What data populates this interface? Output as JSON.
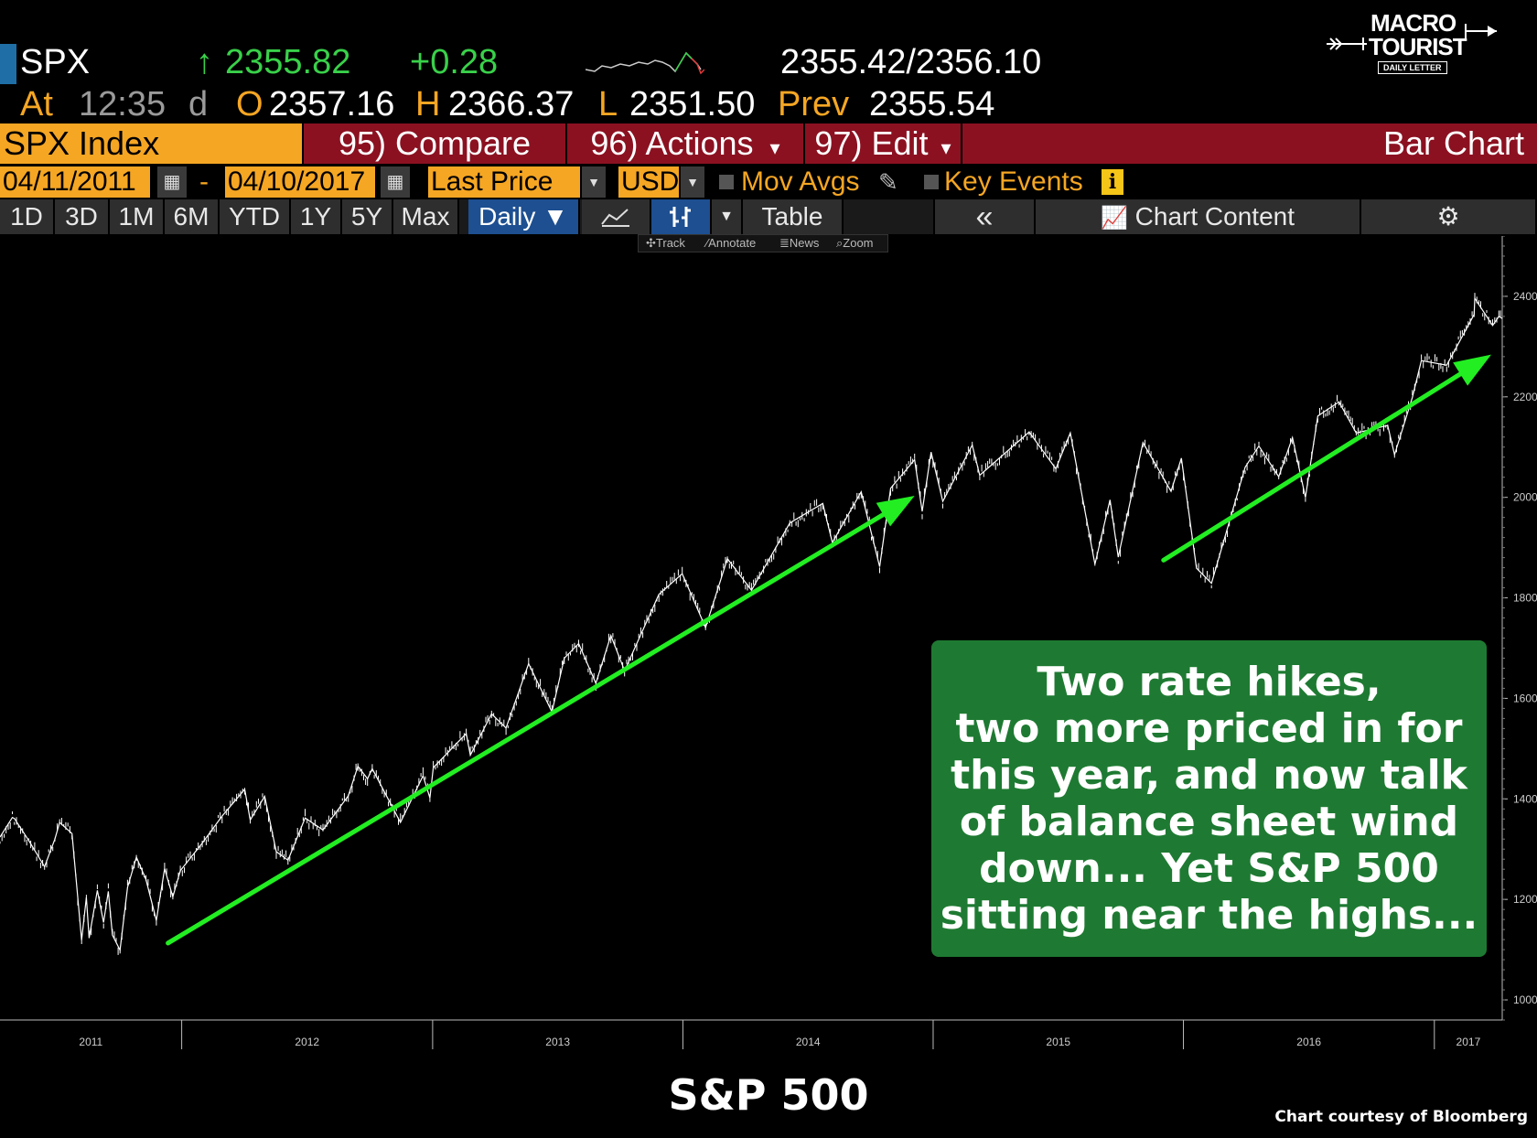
{
  "ticker": {
    "symbol": "SPX",
    "last": "2355.82",
    "up_arrow": "↑",
    "change": "+0.28",
    "bid_ask": "2355.42/2356.10",
    "at_label": "At",
    "time": "12:35",
    "time_flag": "d",
    "open_label": "O",
    "open": "2357.16",
    "high_label": "H",
    "high": "2366.37",
    "low_label": "L",
    "low": "2351.50",
    "prev_label": "Prev",
    "prev": "2355.54"
  },
  "logo": {
    "line1": "MACRO",
    "line2": "TOURIST",
    "line3": "DAILY LETTER"
  },
  "menu": {
    "index_label": "SPX Index",
    "compare": "95) Compare",
    "actions": "96) Actions",
    "actions_caret": "▾",
    "edit": "97) Edit",
    "edit_caret": "▾",
    "chart_type": "Bar Chart"
  },
  "options": {
    "start_date": "04/11/2011",
    "separator": "-",
    "end_date": "04/10/2017",
    "field": "Last Price",
    "currency": "USD",
    "mov_avgs": "Mov Avgs",
    "key_events": "Key Events",
    "info": "i"
  },
  "ranges": {
    "buttons": [
      "1D",
      "3D",
      "1M",
      "6M",
      "YTD",
      "1Y",
      "5Y",
      "Max"
    ],
    "period": "Daily ▼",
    "table": "Table",
    "collapse": "«",
    "chart_content": "Chart Content"
  },
  "tools": [
    "Track",
    "Annotate",
    "News",
    "Zoom"
  ],
  "chart_data": {
    "type": "line",
    "title": "S&P 500",
    "xlabel": "",
    "ylabel": "",
    "x_ticks": [
      "2011",
      "2012",
      "2013",
      "2014",
      "2015",
      "2016",
      "2017"
    ],
    "y_ticks": [
      "1000",
      "1200",
      "1400",
      "1600",
      "1800",
      "2000",
      "2200",
      "2400"
    ],
    "ylim": [
      960,
      2520
    ],
    "xlim": [
      "2011-04-11",
      "2017-04-10"
    ],
    "grid": false,
    "series": [
      {
        "color": "#ffffff",
        "points": [
          [
            "2011-04-11",
            1324
          ],
          [
            "2011-04-29",
            1363
          ],
          [
            "2011-05-02",
            1361
          ],
          [
            "2011-05-23",
            1317
          ],
          [
            "2011-06-15",
            1265
          ],
          [
            "2011-06-30",
            1320
          ],
          [
            "2011-07-07",
            1353
          ],
          [
            "2011-07-25",
            1331
          ],
          [
            "2011-08-08",
            1119
          ],
          [
            "2011-08-15",
            1204
          ],
          [
            "2011-08-19",
            1123
          ],
          [
            "2011-08-31",
            1218
          ],
          [
            "2011-09-09",
            1154
          ],
          [
            "2011-09-16",
            1216
          ],
          [
            "2011-09-22",
            1129
          ],
          [
            "2011-10-03",
            1099
          ],
          [
            "2011-10-14",
            1224
          ],
          [
            "2011-10-27",
            1284
          ],
          [
            "2011-11-10",
            1239
          ],
          [
            "2011-11-25",
            1158
          ],
          [
            "2011-12-07",
            1261
          ],
          [
            "2011-12-19",
            1205
          ],
          [
            "2011-12-30",
            1257
          ],
          [
            "2012-01-31",
            1312
          ],
          [
            "2012-02-29",
            1366
          ],
          [
            "2012-04-02",
            1419
          ],
          [
            "2012-04-10",
            1358
          ],
          [
            "2012-05-01",
            1405
          ],
          [
            "2012-05-18",
            1295
          ],
          [
            "2012-06-04",
            1278
          ],
          [
            "2012-06-29",
            1362
          ],
          [
            "2012-07-25",
            1338
          ],
          [
            "2012-08-31",
            1406
          ],
          [
            "2012-09-14",
            1465
          ],
          [
            "2012-09-28",
            1440
          ],
          [
            "2012-10-05",
            1460
          ],
          [
            "2012-11-15",
            1353
          ],
          [
            "2012-12-18",
            1446
          ],
          [
            "2012-12-28",
            1402
          ],
          [
            "2013-01-02",
            1462
          ],
          [
            "2013-02-19",
            1530
          ],
          [
            "2013-02-25",
            1487
          ],
          [
            "2013-03-28",
            1569
          ],
          [
            "2013-04-18",
            1541
          ],
          [
            "2013-05-21",
            1669
          ],
          [
            "2013-06-24",
            1573
          ],
          [
            "2013-07-12",
            1680
          ],
          [
            "2013-08-02",
            1709
          ],
          [
            "2013-08-27",
            1630
          ],
          [
            "2013-09-18",
            1725
          ],
          [
            "2013-10-08",
            1655
          ],
          [
            "2013-11-27",
            1807
          ],
          [
            "2013-12-31",
            1848
          ],
          [
            "2014-02-03",
            1741
          ],
          [
            "2014-03-07",
            1878
          ],
          [
            "2014-04-11",
            1815
          ],
          [
            "2014-06-06",
            1949
          ],
          [
            "2014-07-24",
            1988
          ],
          [
            "2014-08-07",
            1910
          ],
          [
            "2014-09-18",
            2011
          ],
          [
            "2014-10-15",
            1862
          ],
          [
            "2014-10-31",
            2018
          ],
          [
            "2014-12-05",
            2075
          ],
          [
            "2014-12-16",
            1972
          ],
          [
            "2014-12-29",
            2090
          ],
          [
            "2015-01-15",
            1992
          ],
          [
            "2015-02-27",
            2104
          ],
          [
            "2015-03-10",
            2044
          ],
          [
            "2015-05-21",
            2130
          ],
          [
            "2015-06-29",
            2057
          ],
          [
            "2015-07-20",
            2128
          ],
          [
            "2015-08-25",
            1867
          ],
          [
            "2015-09-16",
            1995
          ],
          [
            "2015-09-28",
            1881
          ],
          [
            "2015-11-03",
            2109
          ],
          [
            "2015-12-14",
            2012
          ],
          [
            "2015-12-29",
            2078
          ],
          [
            "2016-01-20",
            1859
          ],
          [
            "2016-02-11",
            1829
          ],
          [
            "2016-03-31",
            2060
          ],
          [
            "2016-04-20",
            2102
          ],
          [
            "2016-05-19",
            2041
          ],
          [
            "2016-06-08",
            2119
          ],
          [
            "2016-06-27",
            2000
          ],
          [
            "2016-07-15",
            2162
          ],
          [
            "2016-08-15",
            2190
          ],
          [
            "2016-09-09",
            2128
          ],
          [
            "2016-10-25",
            2143
          ],
          [
            "2016-11-04",
            2085
          ],
          [
            "2016-11-30",
            2199
          ],
          [
            "2016-12-13",
            2272
          ],
          [
            "2017-01-19",
            2263
          ],
          [
            "2017-02-28",
            2364
          ],
          [
            "2017-03-01",
            2396
          ],
          [
            "2017-03-27",
            2342
          ],
          [
            "2017-04-05",
            2360
          ],
          [
            "2017-04-10",
            2356
          ]
        ]
      }
    ],
    "annotations": [
      {
        "type": "arrow",
        "color": "#22ee22",
        "from": [
          "2011-12-12",
          1113
        ],
        "to": [
          "2014-12-05",
          2003
        ]
      },
      {
        "type": "arrow",
        "color": "#22ee22",
        "from": [
          "2015-12-03",
          1875
        ],
        "to": [
          "2017-03-25",
          2284
        ]
      },
      {
        "type": "callout",
        "color": "#1e7a32",
        "text": "Two rate hikes,\ntwo more priced in for\n this year, and now talk\nof balance sheet wind\ndown...  Yet S&P 500\nsitting near the highs..."
      }
    ]
  },
  "credit": "Chart courtesy of Bloomberg"
}
